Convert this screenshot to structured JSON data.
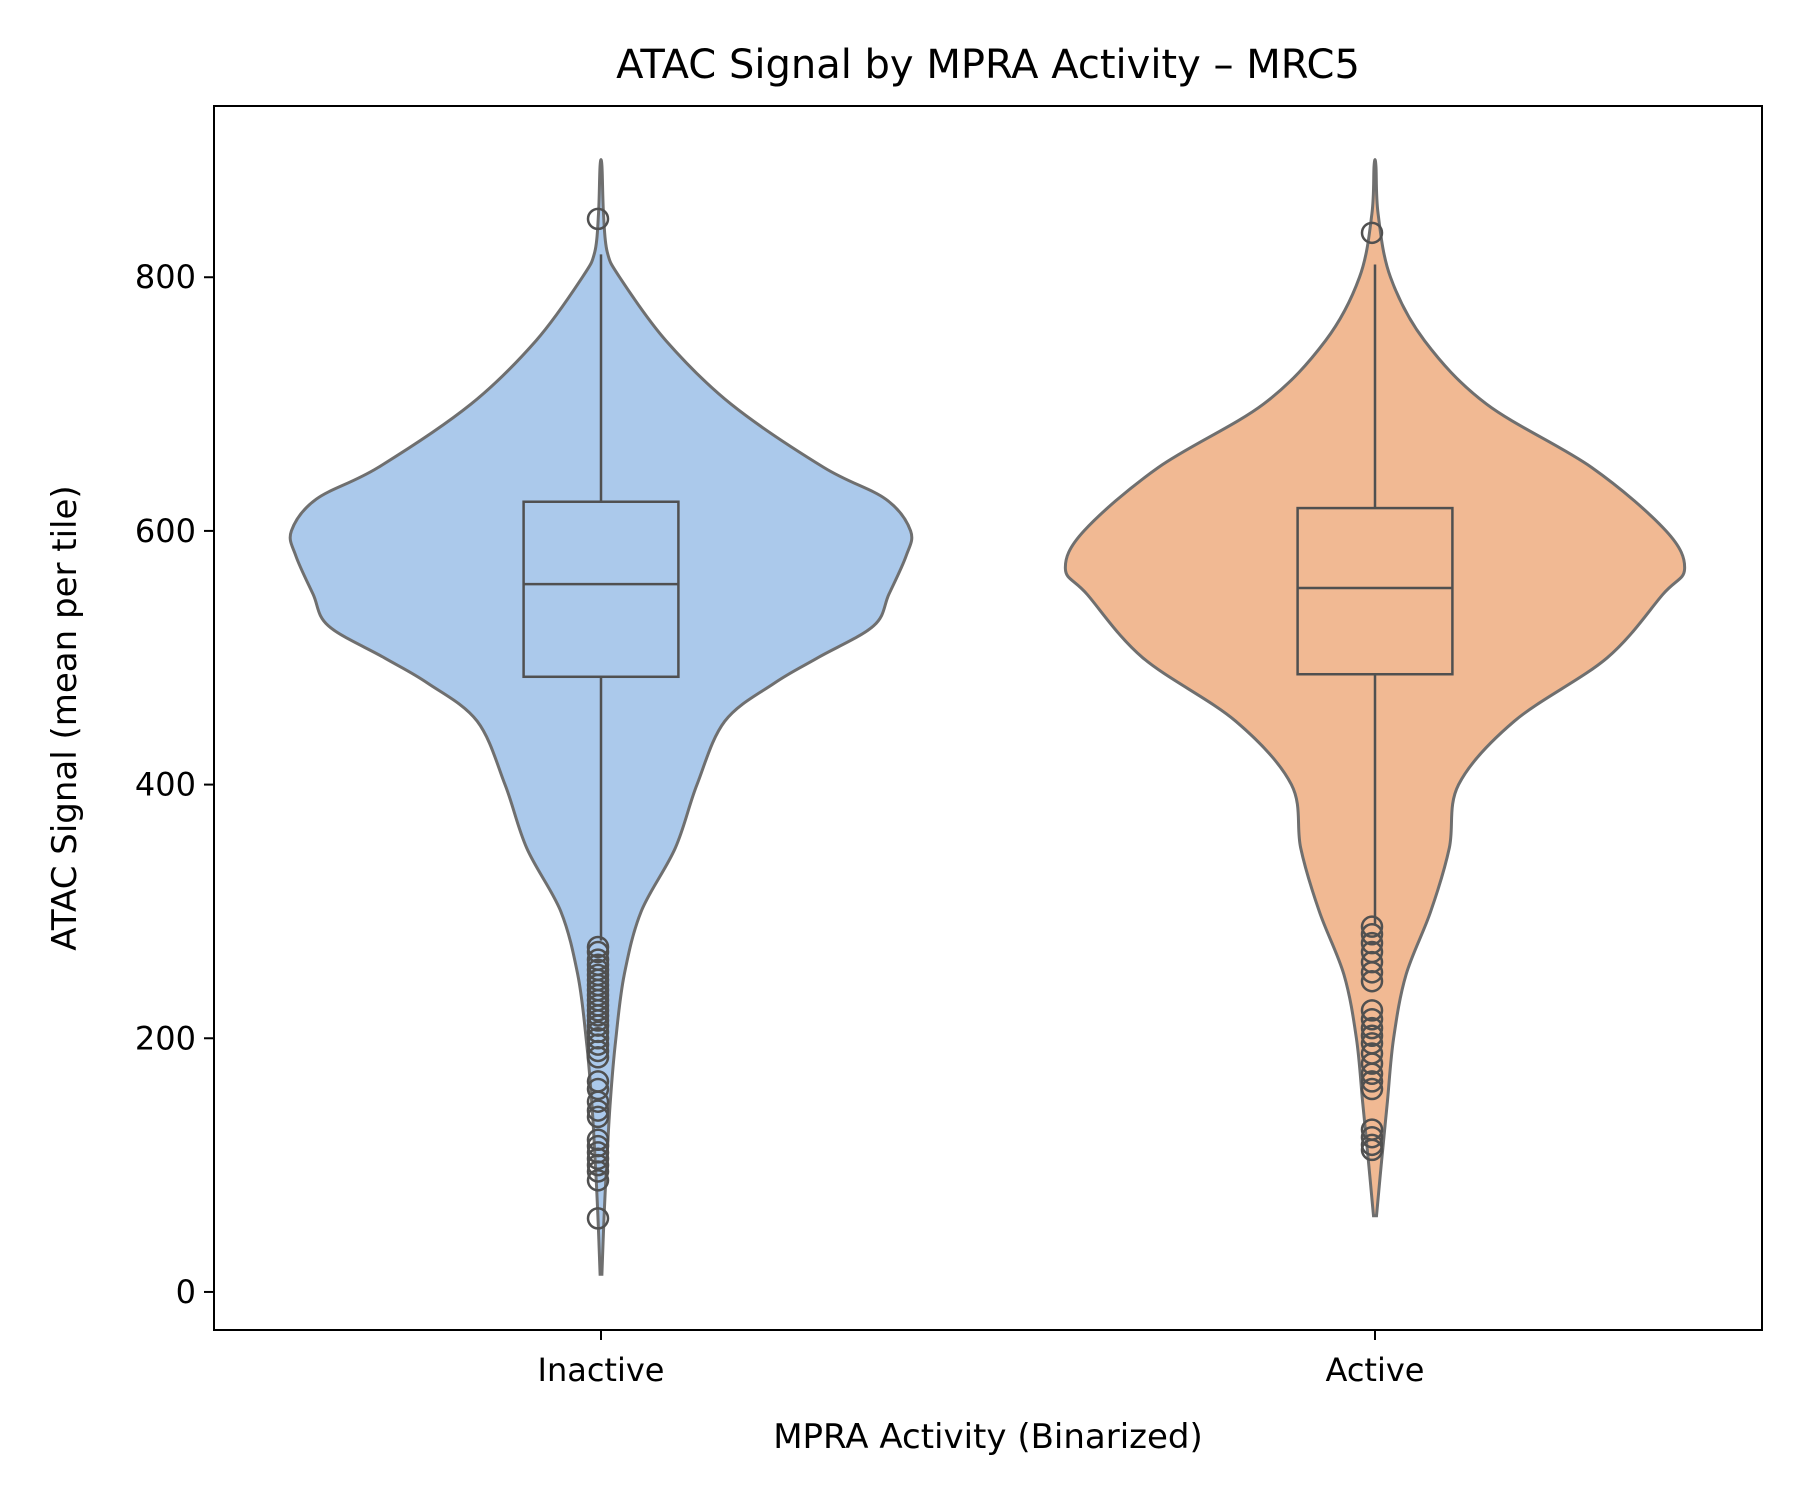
{
  "chart_data": {
    "type": "violin",
    "title": "ATAC Signal by MPRA Activity – MRC5",
    "xlabel": "MPRA Activity (Binarized)",
    "ylabel": "ATAC Signal (mean per tile)",
    "ylim": [
      -30,
      935
    ],
    "yticks": [
      0,
      200,
      400,
      600,
      800
    ],
    "grid": false,
    "categories": [
      "Inactive",
      "Active"
    ],
    "colors": {
      "Inactive": "#abc9eb",
      "Active": "#f1b993",
      "outline": "#6f6f6f",
      "box": "#505050"
    },
    "series": [
      {
        "category": "Inactive",
        "violin": {
          "min": 14,
          "max": 888,
          "profile": [
            [
              14,
              0.003
            ],
            [
              60,
              0.01
            ],
            [
              100,
              0.018
            ],
            [
              150,
              0.03
            ],
            [
              200,
              0.048
            ],
            [
              250,
              0.075
            ],
            [
              300,
              0.13
            ],
            [
              350,
              0.24
            ],
            [
              400,
              0.31
            ],
            [
              450,
              0.4
            ],
            [
              480,
              0.56
            ],
            [
              500,
              0.7
            ],
            [
              525,
              0.88
            ],
            [
              550,
              0.93
            ],
            [
              580,
              0.985
            ],
            [
              600,
              1.0
            ],
            [
              625,
              0.92
            ],
            [
              650,
              0.72
            ],
            [
              700,
              0.42
            ],
            [
              750,
              0.21
            ],
            [
              800,
              0.06
            ],
            [
              820,
              0.02
            ],
            [
              850,
              0.008
            ],
            [
              888,
              0.003
            ]
          ]
        },
        "box": {
          "q1": 485,
          "median": 558,
          "q3": 623,
          "whisker_low": 277,
          "whisker_high": 818
        },
        "outliers": [
          846,
          272,
          268,
          262,
          258,
          254,
          250,
          246,
          242,
          238,
          234,
          230,
          226,
          222,
          218,
          214,
          210,
          205,
          200,
          195,
          190,
          185,
          166,
          160,
          150,
          143,
          138,
          120,
          115,
          110,
          105,
          100,
          95,
          88,
          58
        ]
      },
      {
        "category": "Active",
        "violin": {
          "min": 60,
          "max": 888,
          "profile": [
            [
              60,
              0.005
            ],
            [
              100,
              0.02
            ],
            [
              150,
              0.04
            ],
            [
              200,
              0.06
            ],
            [
              250,
              0.1
            ],
            [
              300,
              0.18
            ],
            [
              350,
              0.24
            ],
            [
              400,
              0.27
            ],
            [
              450,
              0.45
            ],
            [
              500,
              0.75
            ],
            [
              550,
              0.93
            ],
            [
              570,
              1.0
            ],
            [
              600,
              0.94
            ],
            [
              650,
              0.7
            ],
            [
              700,
              0.36
            ],
            [
              750,
              0.16
            ],
            [
              800,
              0.05
            ],
            [
              850,
              0.01
            ],
            [
              888,
              0.003
            ]
          ]
        },
        "box": {
          "q1": 487,
          "median": 555,
          "q3": 618,
          "whisker_low": 290,
          "whisker_high": 810
        },
        "outliers": [
          835,
          288,
          282,
          275,
          268,
          260,
          252,
          245,
          222,
          215,
          208,
          202,
          196,
          188,
          180,
          172,
          166,
          160,
          128,
          122,
          116,
          112
        ]
      }
    ]
  }
}
